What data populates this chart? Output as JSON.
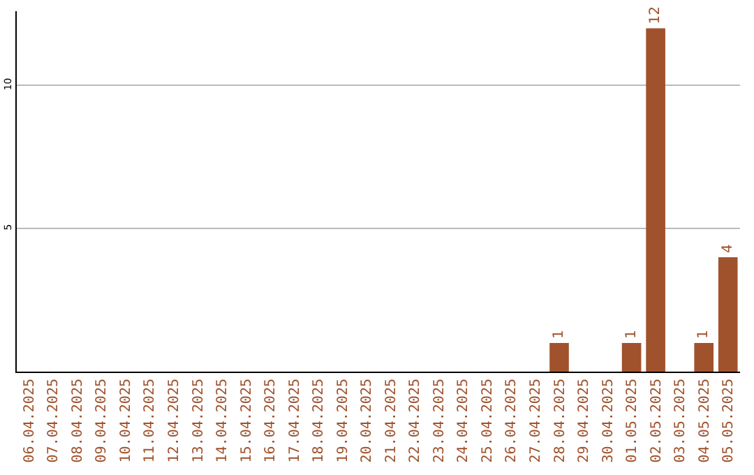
{
  "chart_data": {
    "type": "bar",
    "categories": [
      "06.04.2025",
      "07.04.2025",
      "08.04.2025",
      "09.04.2025",
      "10.04.2025",
      "11.04.2025",
      "12.04.2025",
      "13.04.2025",
      "14.04.2025",
      "15.04.2025",
      "16.04.2025",
      "17.04.2025",
      "18.04.2025",
      "19.04.2025",
      "20.04.2025",
      "21.04.2025",
      "22.04.2025",
      "23.04.2025",
      "24.04.2025",
      "25.04.2025",
      "26.04.2025",
      "27.04.2025",
      "28.04.2025",
      "29.04.2025",
      "30.04.2025",
      "01.05.2025",
      "02.05.2025",
      "03.05.2025",
      "04.05.2025",
      "05.05.2025"
    ],
    "values": [
      0,
      0,
      0,
      0,
      0,
      0,
      0,
      0,
      0,
      0,
      0,
      0,
      0,
      0,
      0,
      0,
      0,
      0,
      0,
      0,
      0,
      0,
      1,
      0,
      0,
      1,
      12,
      0,
      1,
      4
    ],
    "value_labels": [
      null,
      null,
      null,
      null,
      null,
      null,
      null,
      null,
      null,
      null,
      null,
      null,
      null,
      null,
      null,
      null,
      null,
      null,
      null,
      null,
      null,
      null,
      "1",
      null,
      null,
      "1",
      "12",
      null,
      "1",
      "4"
    ],
    "color": "#a0522d",
    "ylim": [
      0,
      12.6
    ],
    "yticks": [
      5,
      10
    ],
    "grid": "y"
  }
}
